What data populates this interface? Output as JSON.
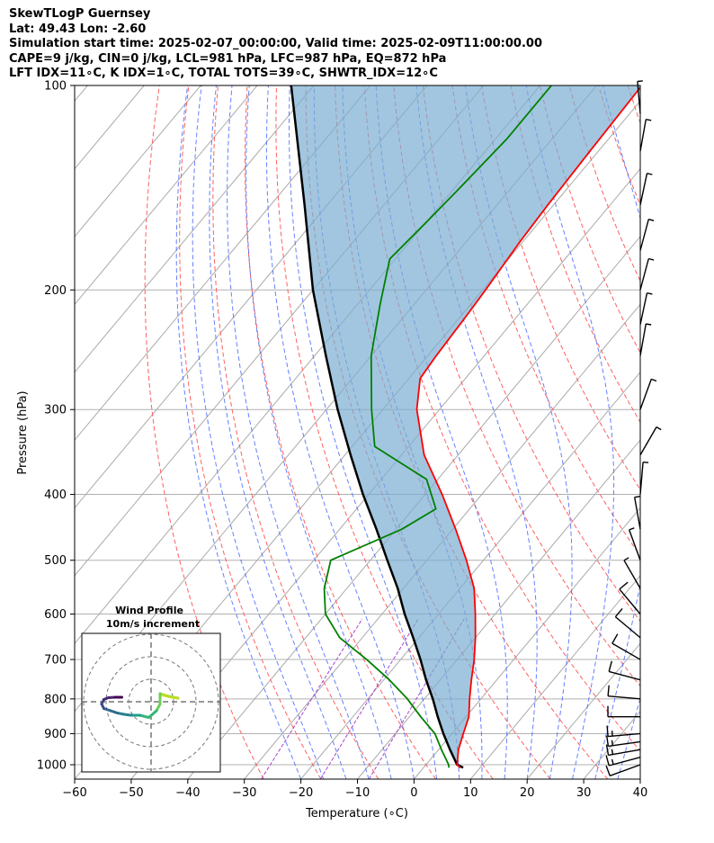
{
  "header": {
    "line1": "SkewTLogP Guernsey",
    "line2": "Lat: 49.43   Lon: -2.60",
    "line3": "Simulation start time: 2025-02-07_00:00:00, Valid time: 2025-02-09T11:00:00.00",
    "line4": "CAPE=9 j/kg, CIN=0 j/kg, LCL=981 hPa, LFC=987 hPa, EQ=872 hPa",
    "line5": "LFT IDX=11∘C, K IDX=1∘C, TOTAL TOTS=39∘C, SHWTR_IDX=12∘C"
  },
  "colors": {
    "temperature": "#ff0000",
    "dewpoint": "#008000",
    "parcel": "#000000",
    "cape_fill": "#7aaed2",
    "dry_adiabat": "#ff6060",
    "moist_adiabat": "#4060ff",
    "mixing_ratio": "#aa44cc",
    "isotherm": "#aaaaaa"
  },
  "chart_data": {
    "type": "skewt",
    "xlabel": "Temperature (∘C)",
    "ylabel": "Pressure (hPa)",
    "xlim": [
      -60,
      40
    ],
    "ylim": [
      1050,
      100
    ],
    "xticks": [
      "−60",
      "−50",
      "−40",
      "−30",
      "−20",
      "−10",
      "0",
      "10",
      "20",
      "30",
      "40"
    ],
    "yticks": [
      "100",
      "200",
      "300",
      "400",
      "500",
      "600",
      "700",
      "800",
      "900",
      "1000"
    ],
    "temperature_profile": [
      {
        "p": 1010,
        "t": 6.5
      },
      {
        "p": 1000,
        "t": 5.5
      },
      {
        "p": 950,
        "t": 3.5
      },
      {
        "p": 900,
        "t": 2.0
      },
      {
        "p": 850,
        "t": 0.5
      },
      {
        "p": 800,
        "t": -2.0
      },
      {
        "p": 750,
        "t": -4.5
      },
      {
        "p": 700,
        "t": -7.0
      },
      {
        "p": 650,
        "t": -10.0
      },
      {
        "p": 600,
        "t": -13.5
      },
      {
        "p": 550,
        "t": -17.5
      },
      {
        "p": 500,
        "t": -23.0
      },
      {
        "p": 450,
        "t": -29.5
      },
      {
        "p": 400,
        "t": -37.0
      },
      {
        "p": 350,
        "t": -46.0
      },
      {
        "p": 300,
        "t": -54.0
      },
      {
        "p": 270,
        "t": -58.0
      },
      {
        "p": 250,
        "t": -58.5
      },
      {
        "p": 220,
        "t": -59.0
      },
      {
        "p": 200,
        "t": -59.5
      },
      {
        "p": 170,
        "t": -60.5
      },
      {
        "p": 150,
        "t": -61.0
      },
      {
        "p": 125,
        "t": -61.5
      },
      {
        "p": 100,
        "t": -62.0
      }
    ],
    "dewpoint_profile": [
      {
        "p": 1010,
        "t": 4.5
      },
      {
        "p": 1000,
        "t": 4.0
      },
      {
        "p": 950,
        "t": 0.5
      },
      {
        "p": 900,
        "t": -3.0
      },
      {
        "p": 850,
        "t": -8.0
      },
      {
        "p": 800,
        "t": -13.0
      },
      {
        "p": 750,
        "t": -19.0
      },
      {
        "p": 700,
        "t": -26.0
      },
      {
        "p": 650,
        "t": -34.0
      },
      {
        "p": 600,
        "t": -40.0
      },
      {
        "p": 550,
        "t": -44.0
      },
      {
        "p": 500,
        "t": -47.0
      },
      {
        "p": 450,
        "t": -39.0
      },
      {
        "p": 420,
        "t": -36.0
      },
      {
        "p": 380,
        "t": -42.0
      },
      {
        "p": 340,
        "t": -56.0
      },
      {
        "p": 300,
        "t": -62.0
      },
      {
        "p": 250,
        "t": -70.0
      },
      {
        "p": 210,
        "t": -76.0
      },
      {
        "p": 180,
        "t": -81.0
      },
      {
        "p": 160,
        "t": -80.0
      },
      {
        "p": 140,
        "t": -79.0
      },
      {
        "p": 120,
        "t": -78.0
      },
      {
        "p": 100,
        "t": -78.0
      }
    ],
    "parcel_profile": [
      {
        "p": 1010,
        "t": 7.0
      },
      {
        "p": 1000,
        "t": 5.5
      },
      {
        "p": 950,
        "t": 2.0
      },
      {
        "p": 900,
        "t": -1.5
      },
      {
        "p": 850,
        "t": -5.0
      },
      {
        "p": 800,
        "t": -8.5
      },
      {
        "p": 750,
        "t": -12.5
      },
      {
        "p": 700,
        "t": -16.5
      },
      {
        "p": 650,
        "t": -21.0
      },
      {
        "p": 600,
        "t": -26.0
      },
      {
        "p": 550,
        "t": -31.0
      },
      {
        "p": 500,
        "t": -37.0
      },
      {
        "p": 450,
        "t": -43.5
      },
      {
        "p": 400,
        "t": -51.0
      },
      {
        "p": 350,
        "t": -59.0
      },
      {
        "p": 300,
        "t": -68.0
      },
      {
        "p": 250,
        "t": -78.0
      },
      {
        "p": 200,
        "t": -90.0
      },
      {
        "p": 150,
        "t": -104.0
      },
      {
        "p": 100,
        "t": -124.0
      }
    ],
    "wind_barbs": [
      {
        "p": 1000,
        "dir": 250,
        "spd": 14
      },
      {
        "p": 975,
        "dir": 255,
        "spd": 16
      },
      {
        "p": 950,
        "dir": 260,
        "spd": 18
      },
      {
        "p": 925,
        "dir": 262,
        "spd": 17
      },
      {
        "p": 900,
        "dir": 265,
        "spd": 15
      },
      {
        "p": 850,
        "dir": 270,
        "spd": 12
      },
      {
        "p": 800,
        "dir": 275,
        "spd": 11
      },
      {
        "p": 750,
        "dir": 285,
        "spd": 12
      },
      {
        "p": 700,
        "dir": 300,
        "spd": 13
      },
      {
        "p": 650,
        "dir": 310,
        "spd": 12
      },
      {
        "p": 600,
        "dir": 320,
        "spd": 10
      },
      {
        "p": 550,
        "dir": 330,
        "spd": 8
      },
      {
        "p": 500,
        "dir": 340,
        "spd": 6
      },
      {
        "p": 450,
        "dir": 350,
        "spd": 5
      },
      {
        "p": 400,
        "dir": 5,
        "spd": 6
      },
      {
        "p": 350,
        "dir": 30,
        "spd": 5
      },
      {
        "p": 300,
        "dir": 20,
        "spd": 6
      },
      {
        "p": 250,
        "dir": 10,
        "spd": 5
      },
      {
        "p": 225,
        "dir": 12,
        "spd": 5
      },
      {
        "p": 200,
        "dir": 15,
        "spd": 5
      },
      {
        "p": 175,
        "dir": 15,
        "spd": 5
      },
      {
        "p": 150,
        "dir": 12,
        "spd": 5
      },
      {
        "p": 125,
        "dir": 10,
        "spd": 5
      },
      {
        "p": 110,
        "dir": 355,
        "spd": 5
      }
    ],
    "hodograph": {
      "title": "Wind Profile",
      "subtitle": "10m/s increment",
      "points": [
        {
          "u": 2.5,
          "v": 1.5
        },
        {
          "u": 4.5,
          "v": 1.0
        },
        {
          "u": 6.0,
          "v": 0.8
        },
        {
          "u": 4.0,
          "v": 1.2
        },
        {
          "u": 2.0,
          "v": 1.8
        },
        {
          "u": 2.0,
          "v": -0.5
        },
        {
          "u": 1.2,
          "v": -2.0
        },
        {
          "u": -0.5,
          "v": -3.5
        },
        {
          "u": -2.5,
          "v": -3.0
        },
        {
          "u": -4.5,
          "v": -3.0
        },
        {
          "u": -6.0,
          "v": -2.8
        },
        {
          "u": -7.5,
          "v": -2.5
        },
        {
          "u": -9.0,
          "v": -2.0
        },
        {
          "u": -10.5,
          "v": -1.5
        },
        {
          "u": -11.0,
          "v": -0.5
        },
        {
          "u": -10.5,
          "v": 0.5
        },
        {
          "u": -9.5,
          "v": 0.9
        },
        {
          "u": -8.0,
          "v": 1.0
        },
        {
          "u": -6.5,
          "v": 1.0
        }
      ]
    }
  }
}
